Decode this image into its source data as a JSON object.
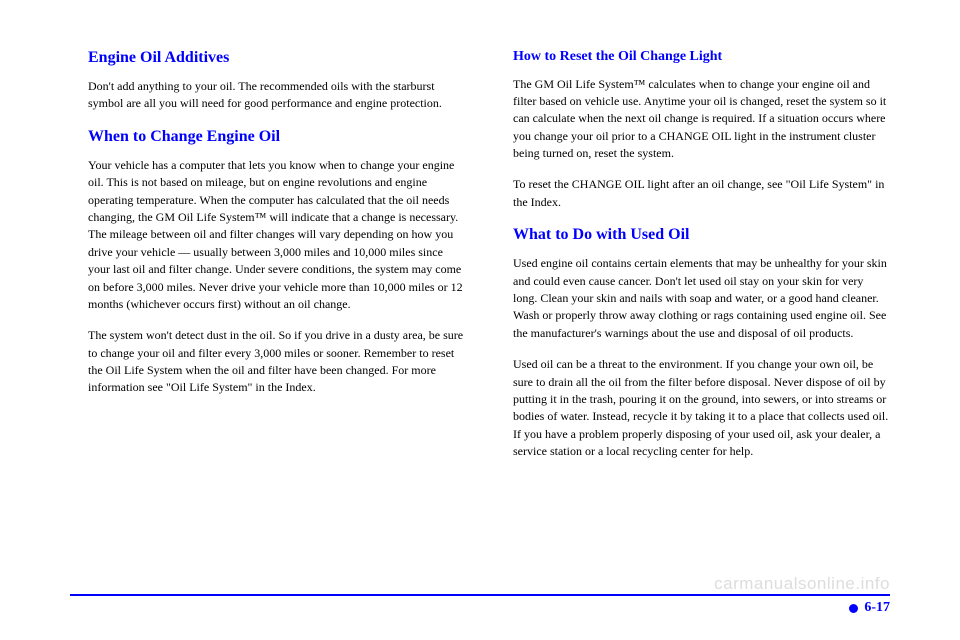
{
  "left": {
    "h1": "Engine Oil Additives",
    "p1": "Don't add anything to your oil. The recommended oils with the starburst symbol are all you will need for good performance and engine protection.",
    "h2": "When to Change Engine Oil",
    "p2": "Your vehicle has a computer that lets you know when to change your engine oil. This is not based on mileage, but on engine revolutions and engine operating temperature. When the computer has calculated that the oil needs changing, the GM Oil Life System™ will indicate that a change is necessary. The mileage between oil and filter changes will vary depending on how you drive your vehicle — usually between 3,000 miles and 10,000 miles since your last oil and filter change. Under severe conditions, the system may come on before 3,000 miles. Never drive your vehicle more than 10,000 miles or 12 months (whichever occurs first) without an oil change.",
    "p3": "The system won't detect dust in the oil. So if you drive in a dusty area, be sure to change your oil and filter every 3,000 miles or sooner. Remember to reset the Oil Life System when the oil and filter have been changed. For more information see \"Oil Life System\" in the Index."
  },
  "right": {
    "h1": "How to Reset the Oil Change Light",
    "p1": "The GM Oil Life System™ calculates when to change your engine oil and filter based on vehicle use. Anytime your oil is changed, reset the system so it can calculate when the next oil change is required. If a situation occurs where you change your oil prior to a CHANGE OIL light in the instrument cluster being turned on, reset the system.",
    "p2": "To reset the CHANGE OIL light after an oil change, see \"Oil Life System\" in the Index.",
    "h2": "What to Do with Used Oil",
    "p3": "Used engine oil contains certain elements that may be unhealthy for your skin and could even cause cancer. Don't let used oil stay on your skin for very long. Clean your skin and nails with soap and water, or a good hand cleaner. Wash or properly throw away clothing or rags containing used engine oil. See the manufacturer's warnings about the use and disposal of oil products.",
    "p4": "Used oil can be a threat to the environment. If you change your own oil, be sure to drain all the oil from the filter before disposal. Never dispose of oil by putting it in the trash, pouring it on the ground, into sewers, or into streams or bodies of water. Instead, recycle it by taking it to a place that collects used oil. If you have a problem properly disposing of your used oil, ask your dealer, a service station or a local recycling center for help."
  },
  "footer": {
    "page": "6-17"
  },
  "watermark": "carmanualsonline.info"
}
